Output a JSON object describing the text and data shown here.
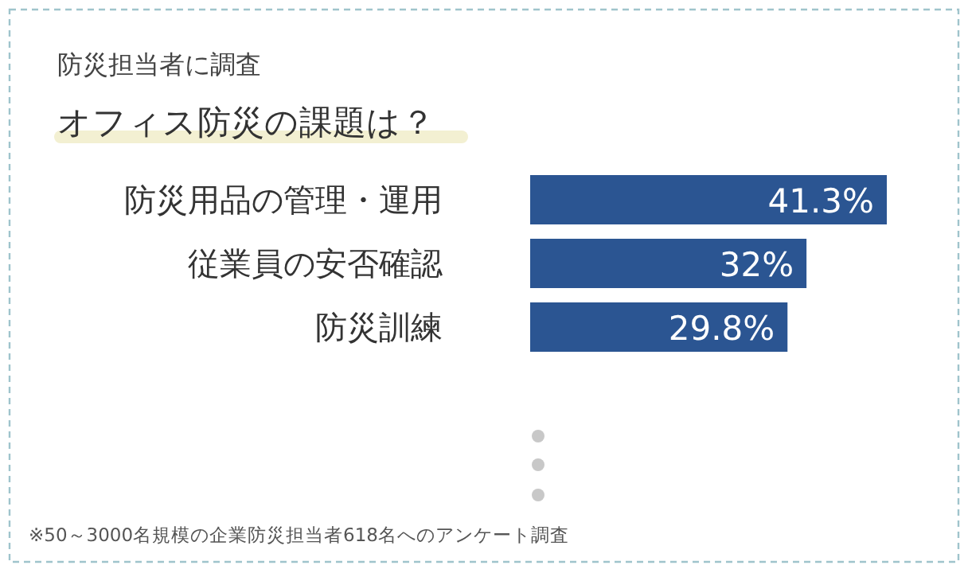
{
  "chart_data": {
    "type": "bar",
    "orientation": "horizontal",
    "subtitle": "防災担当者に調査",
    "title": "オフィス防災の課題は？",
    "categories": [
      "防災用品の管理・運用",
      "従業員の安否確認",
      "防災訓練"
    ],
    "values": [
      41.3,
      32,
      29.8
    ],
    "color": "#2b5592",
    "value_labels": [
      "41.3%",
      "32%",
      "29.8%"
    ],
    "annotations": [
      "※50～3000名規模の企業防災担当者618名へのアンケート調査"
    ]
  }
}
